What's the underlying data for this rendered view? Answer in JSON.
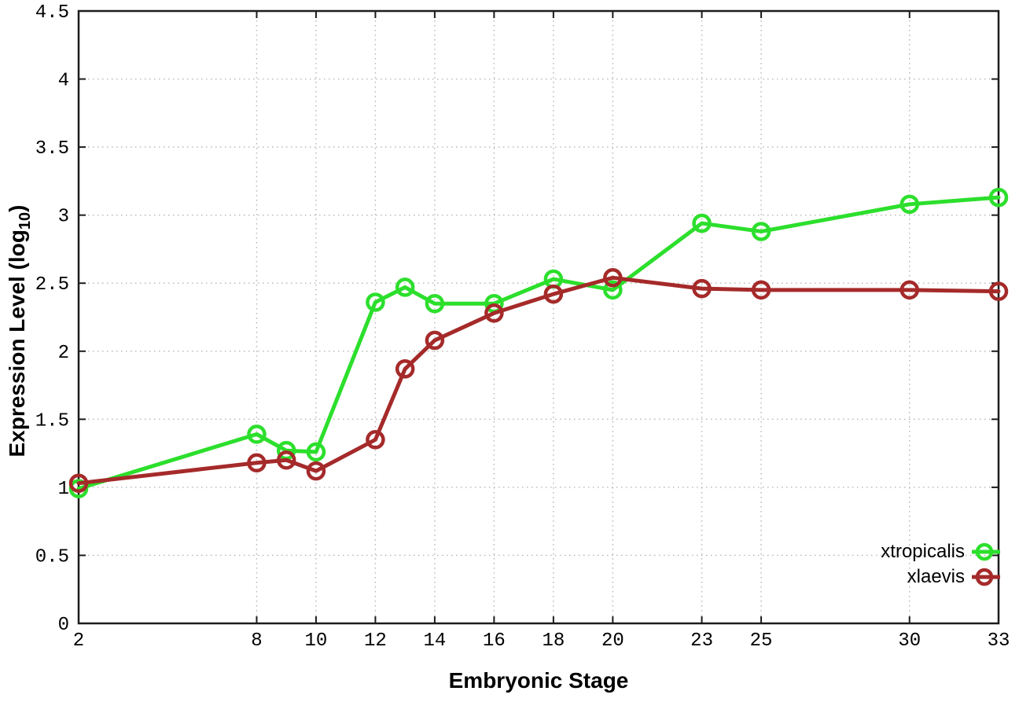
{
  "chart_data": {
    "type": "line",
    "title": "",
    "xlabel": "Embryonic Stage",
    "ylabel": {
      "main": "Expression Level (log",
      "sub": "10",
      "end": ")"
    },
    "x": [
      2,
      8,
      9,
      10,
      12,
      13,
      14,
      16,
      18,
      20,
      23,
      25,
      30,
      33
    ],
    "series": [
      {
        "name": "xtropicalis",
        "color": "#2cdf2c",
        "values": [
          0.99,
          1.39,
          1.27,
          1.26,
          2.36,
          2.47,
          2.35,
          2.35,
          2.53,
          2.45,
          2.94,
          2.88,
          3.08,
          3.13
        ]
      },
      {
        "name": "xlaevis",
        "color": "#a52a2a",
        "values": [
          1.03,
          1.18,
          1.2,
          1.12,
          1.35,
          1.87,
          2.08,
          2.28,
          2.42,
          2.54,
          2.46,
          2.45,
          2.45,
          2.44
        ]
      }
    ],
    "xticks": [
      2,
      8,
      10,
      12,
      14,
      16,
      18,
      20,
      23,
      25,
      30,
      33
    ],
    "yticks": [
      0,
      0.5,
      1,
      1.5,
      2,
      2.5,
      3,
      3.5,
      4,
      4.5
    ],
    "xlim": [
      2,
      33
    ],
    "ylim": [
      0,
      4.5
    ],
    "grid": true,
    "legend_position": "inside-bottom-right",
    "axis_color": "#1c1c1c",
    "grid_color": "#b4b4b4",
    "background": "#ffffff"
  }
}
